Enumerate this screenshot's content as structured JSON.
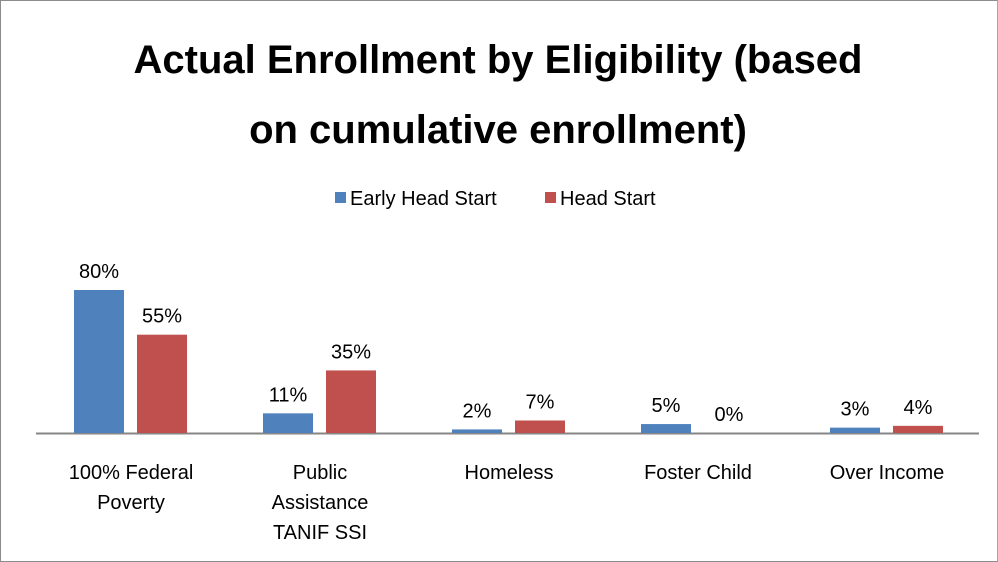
{
  "chart_data": {
    "type": "bar",
    "title_lines": [
      "Actual Enrollment by Eligibility (based",
      "on cumulative enrollment)"
    ],
    "categories": [
      [
        "100% Federal",
        "Poverty"
      ],
      [
        "Public",
        "Assistance",
        "TANIF SSI"
      ],
      [
        "Homeless"
      ],
      [
        "Foster Child"
      ],
      [
        "Over Income"
      ]
    ],
    "series": [
      {
        "name": "Early Head Start",
        "color": "#4f81bd",
        "values": [
          80,
          11,
          2,
          5,
          3
        ],
        "labels": [
          "80%",
          "11%",
          "2%",
          "5%",
          "3%"
        ]
      },
      {
        "name": "Head Start",
        "color": "#c0504d",
        "values": [
          55,
          35,
          7,
          0,
          4
        ],
        "labels": [
          "55%",
          "35%",
          "7%",
          "0%",
          "4%"
        ]
      }
    ],
    "legend_position": "top",
    "grid": false,
    "ylim": [
      0,
      80
    ]
  }
}
